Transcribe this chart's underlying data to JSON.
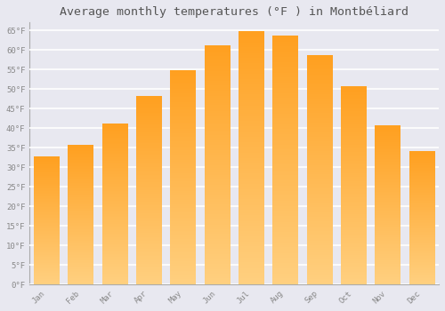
{
  "title": "Average monthly temperatures (°F ) in Montbéliard",
  "months": [
    "Jan",
    "Feb",
    "Mar",
    "Apr",
    "May",
    "Jun",
    "Jul",
    "Aug",
    "Sep",
    "Oct",
    "Nov",
    "Dec"
  ],
  "values": [
    32.5,
    35.5,
    41.0,
    48.0,
    54.5,
    61.0,
    64.5,
    63.5,
    58.5,
    50.5,
    40.5,
    34.0
  ],
  "bar_color_top": "#FFA020",
  "bar_color_bottom": "#FFD080",
  "background_color": "#e8e8f0",
  "grid_color": "#ffffff",
  "yticks": [
    0,
    5,
    10,
    15,
    20,
    25,
    30,
    35,
    40,
    45,
    50,
    55,
    60,
    65
  ],
  "ylim": [
    0,
    67
  ],
  "tick_label_color": "#888888",
  "title_color": "#555555",
  "title_fontsize": 9.5,
  "bar_width": 0.75
}
